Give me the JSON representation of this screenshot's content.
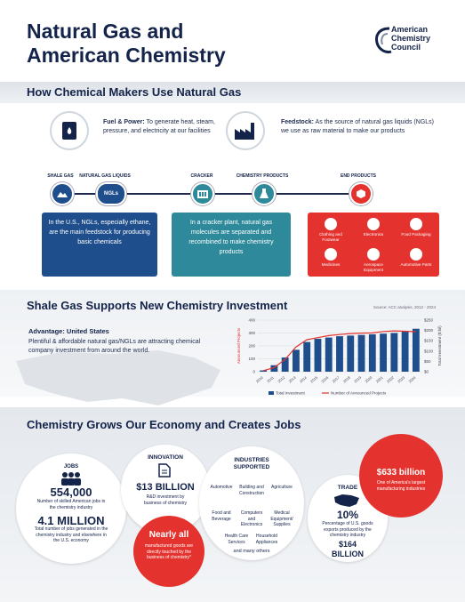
{
  "title_line1": "Natural Gas and",
  "title_line2": "American Chemistry",
  "logo": {
    "line1": "American",
    "line2": "Chemistry",
    "line3": "Council"
  },
  "section1": {
    "heading": "How Chemical Makers Use Natural Gas",
    "fuel_bold": "Fuel & Power:",
    "fuel_text": "To generate heat, steam, pressure, and electricity at our facilities",
    "feed_bold": "Feedstock:",
    "feed_text": "As the source of natural gas liquids (NGLs) we use as raw material to make our products",
    "stages": [
      "SHALE GAS",
      "NATURAL GAS LIQUIDS",
      "CRACKER",
      "CHEMISTRY PRODUCTS",
      "END PRODUCTS"
    ],
    "ngl_badge": "NGLs",
    "box_blue": "In the U.S., NGLs, especially ethane, are the main feedstock for producing basic chemicals",
    "box_teal": "In a cracker plant, natural gas molecules are separated and recombined to make chemistry products",
    "end_products": [
      "Clothing and Footwear",
      "Electronics",
      "Food Packaging",
      "Medicines",
      "Aerospace Equipment",
      "Automotive Parts"
    ]
  },
  "section2": {
    "heading": "Shale Gas Supports New Chemistry Investment",
    "source": "Source: ACC analysis, 2012 - 2024",
    "advantage_title": "Advantage: United States",
    "advantage_text": "Plentiful & affordable natural gas/NGLs are attracting chemical company investment from around the world."
  },
  "chart_data": {
    "type": "bar",
    "categories": [
      "2010",
      "2011",
      "2012",
      "2013",
      "2014",
      "2015",
      "2016",
      "2017",
      "2018",
      "2019",
      "2020",
      "2021",
      "2022",
      "2023",
      "2024"
    ],
    "series": [
      {
        "name": "Total Investment",
        "values": [
          5,
          20,
          60,
          120,
          155,
          165,
          175,
          180,
          185,
          187,
          188,
          195,
          198,
          196,
          194
        ]
      },
      {
        "name": "Number of Announced Projects",
        "values": [
          10,
          50,
          110,
          170,
          230,
          255,
          265,
          275,
          280,
          285,
          290,
          295,
          300,
          310,
          333
        ]
      }
    ],
    "ylabel_left": "Announced Projects",
    "ylabel_right": "Total Investment ($ bil)",
    "ylim_left": [
      0,
      400
    ],
    "ylim_right": [
      0,
      250
    ],
    "left_ticks": [
      "400",
      "300",
      "200",
      "100",
      "0"
    ],
    "right_ticks": [
      "$250",
      "$200",
      "$150",
      "$100",
      "$50",
      "$0"
    ],
    "legend_placement": "bottom",
    "colors": {
      "bars": "#1f4e8c",
      "line": "#e4332f"
    }
  },
  "section3": {
    "heading": "Chemistry Grows Our Economy and Creates Jobs",
    "jobs_label": "JOBS",
    "jobs_value": "554,000",
    "jobs_text": "Number of skilled American jobs in the chemistry industry",
    "jobs_total": "4.1 MILLION",
    "jobs_total_text": "Total number of jobs generated in the chemistry industry and elsewhere in the U.S. economy",
    "innovation_label": "INNOVATION",
    "innovation_value": "$13 BILLION",
    "innovation_text": "R&D investment by business of chemistry",
    "nearly_all": "Nearly all",
    "nearly_all_text": "manufactured goods are directly touched by the business of chemistry*",
    "industries_label": "INDUSTRIES SUPPORTED",
    "industries": [
      "Automotive",
      "Building and Construction",
      "Agriculture",
      "Food and Beverage",
      "Computers and Electronics",
      "Medical Equipment/ Supplies",
      "Health Care Services",
      "Household Appliances"
    ],
    "industries_more": "and many others",
    "trade_label": "TRADE",
    "trade_pct": "10%",
    "trade_text": "Percentage of U.S. goods exports produced by the chemistry industry",
    "trade_value": "$164 BILLION",
    "big_value": "$633 billion",
    "big_text": "One of America's largest manufacturing industries"
  },
  "colors": {
    "navy": "#14234a",
    "blue": "#1f4e8c",
    "teal": "#2e8a9a",
    "red": "#e4332f"
  }
}
